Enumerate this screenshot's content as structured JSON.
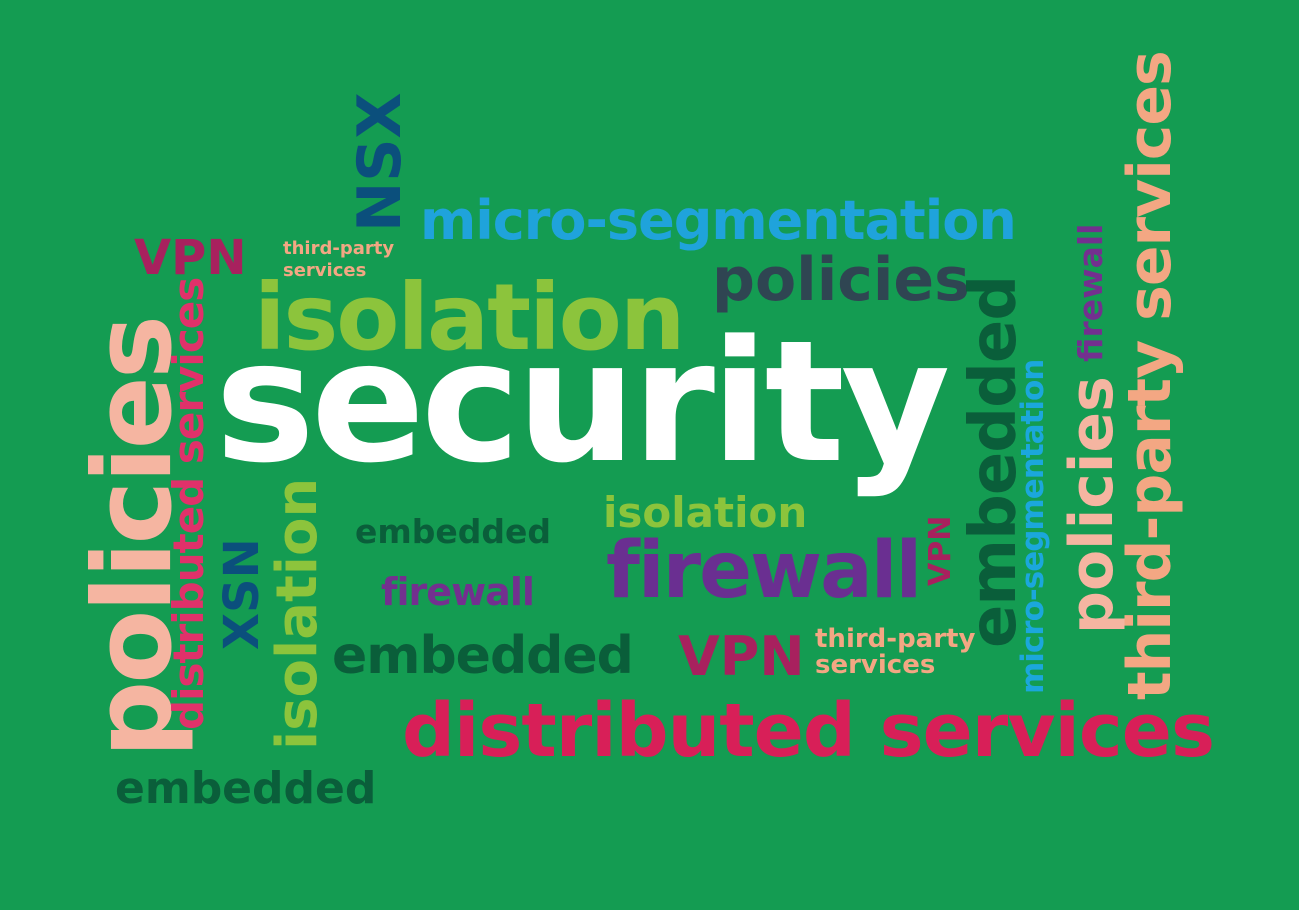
{
  "cloud": {
    "security": "security",
    "micro_segmentation": "micro-segmentation",
    "micro_segmentation_vertical": "micro-segmentation",
    "policies_top": "policies",
    "policies_left": "policies",
    "policies_right": "policies",
    "isolation_big": "isolation",
    "isolation_small": "isolation",
    "isolation_vertical": "isolation",
    "firewall_big": "firewall",
    "firewall_small": "firewall",
    "firewall_vertical": "firewall",
    "embedded_small": "embedded",
    "embedded_mid": "embedded",
    "embedded_bottom": "embedded",
    "embedded_vertical": "embedded",
    "distributed_services_big": "distributed services",
    "distributed_services_vertical": "distributed services",
    "third_party_top_line1": "third-party",
    "third_party_top_line2": "services",
    "third_party_mid_line1": "third-party",
    "third_party_mid_line2": "services",
    "third_party_vertical": "third-party services",
    "vpn_top": "VPN",
    "vpn_mid": "VPN",
    "vpn_vertical": "VPN",
    "nsx_vertical": "NSX",
    "xsn_vertical": "XSN"
  },
  "colors": {
    "background": "#149c52",
    "white": "#ffffff",
    "blue": "#1fa3db",
    "slate": "#2f4552",
    "lime": "#8cc43c",
    "purple": "#6a2f91",
    "dark_green": "#0a5e3a",
    "crimson": "#d81f58",
    "peach": "#f5b5a1"
  }
}
